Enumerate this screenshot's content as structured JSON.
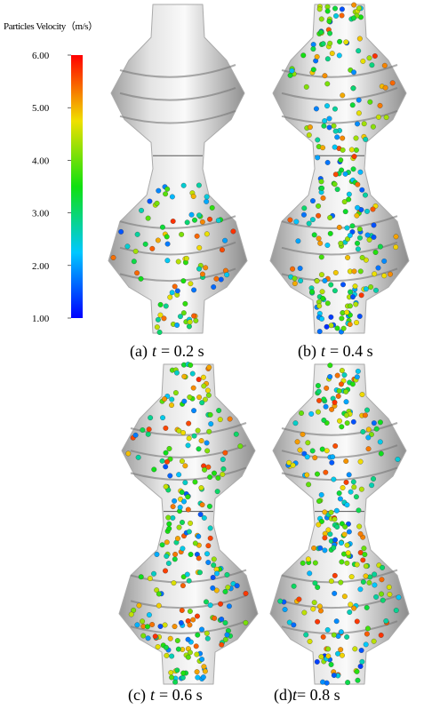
{
  "colorbar": {
    "title": "Particles Velocity（m/s）",
    "range": [
      1,
      6
    ],
    "ticks": [
      {
        "value": 6,
        "label": "6.00"
      },
      {
        "value": 5,
        "label": "5.00"
      },
      {
        "value": 4,
        "label": "4.00"
      },
      {
        "value": 3,
        "label": "3.00"
      },
      {
        "value": 2,
        "label": "2.00"
      },
      {
        "value": 1,
        "label": "1.00"
      }
    ],
    "colors": [
      "#0000ff",
      "#00c8ff",
      "#10e010",
      "#f0e000",
      "#ff0000"
    ]
  },
  "panels": [
    {
      "caption": {
        "label": "(a)",
        "variable": "t",
        "text": "= 0.2 s"
      }
    },
    {
      "caption": {
        "label": "(b)",
        "variable": "t",
        "text": "= 0.4 s"
      }
    },
    {
      "caption": {
        "label": "(c)",
        "variable": "t",
        "text": "= 0.6 s"
      }
    },
    {
      "caption": {
        "label": "(d)",
        "variable": "t",
        "text": "= 0.8 s"
      }
    }
  ]
}
